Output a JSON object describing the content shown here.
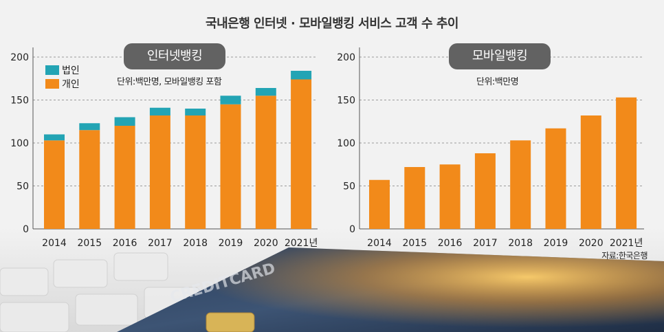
{
  "title": "국내은행 인터넷 · 모바일뱅킹 서비스 고객 수 추이",
  "source": "자료:한국은행",
  "colors": {
    "individual": "#f28a1a",
    "corporate": "#23a4b4"
  },
  "chart_data": [
    {
      "type": "bar",
      "title": "인터넷뱅킹",
      "unit_note": "단위:백만명, 모바일뱅킹 포함",
      "categories": [
        "2014",
        "2015",
        "2016",
        "2017",
        "2018",
        "2019",
        "2020",
        "2021년"
      ],
      "stacked": true,
      "series": [
        {
          "name": "개인",
          "values": [
            103,
            115,
            120,
            132,
            132,
            145,
            155,
            174
          ]
        },
        {
          "name": "법인",
          "values": [
            7,
            8,
            10,
            9,
            8,
            10,
            9,
            10
          ]
        }
      ],
      "y_ticks": [
        "0",
        "50",
        "100",
        "150",
        "200"
      ],
      "ylim": [
        0,
        200
      ],
      "grid": true,
      "legend": "top-left"
    },
    {
      "type": "bar",
      "title": "모바일뱅킹",
      "unit_note": "단위:백만명",
      "categories": [
        "2014",
        "2015",
        "2016",
        "2017",
        "2018",
        "2019",
        "2020",
        "2021년"
      ],
      "values": [
        57,
        72,
        75,
        88,
        103,
        117,
        132,
        153
      ],
      "y_ticks": [
        "0",
        "50",
        "100",
        "150",
        "200"
      ],
      "ylim": [
        0,
        200
      ],
      "grid": true
    }
  ]
}
